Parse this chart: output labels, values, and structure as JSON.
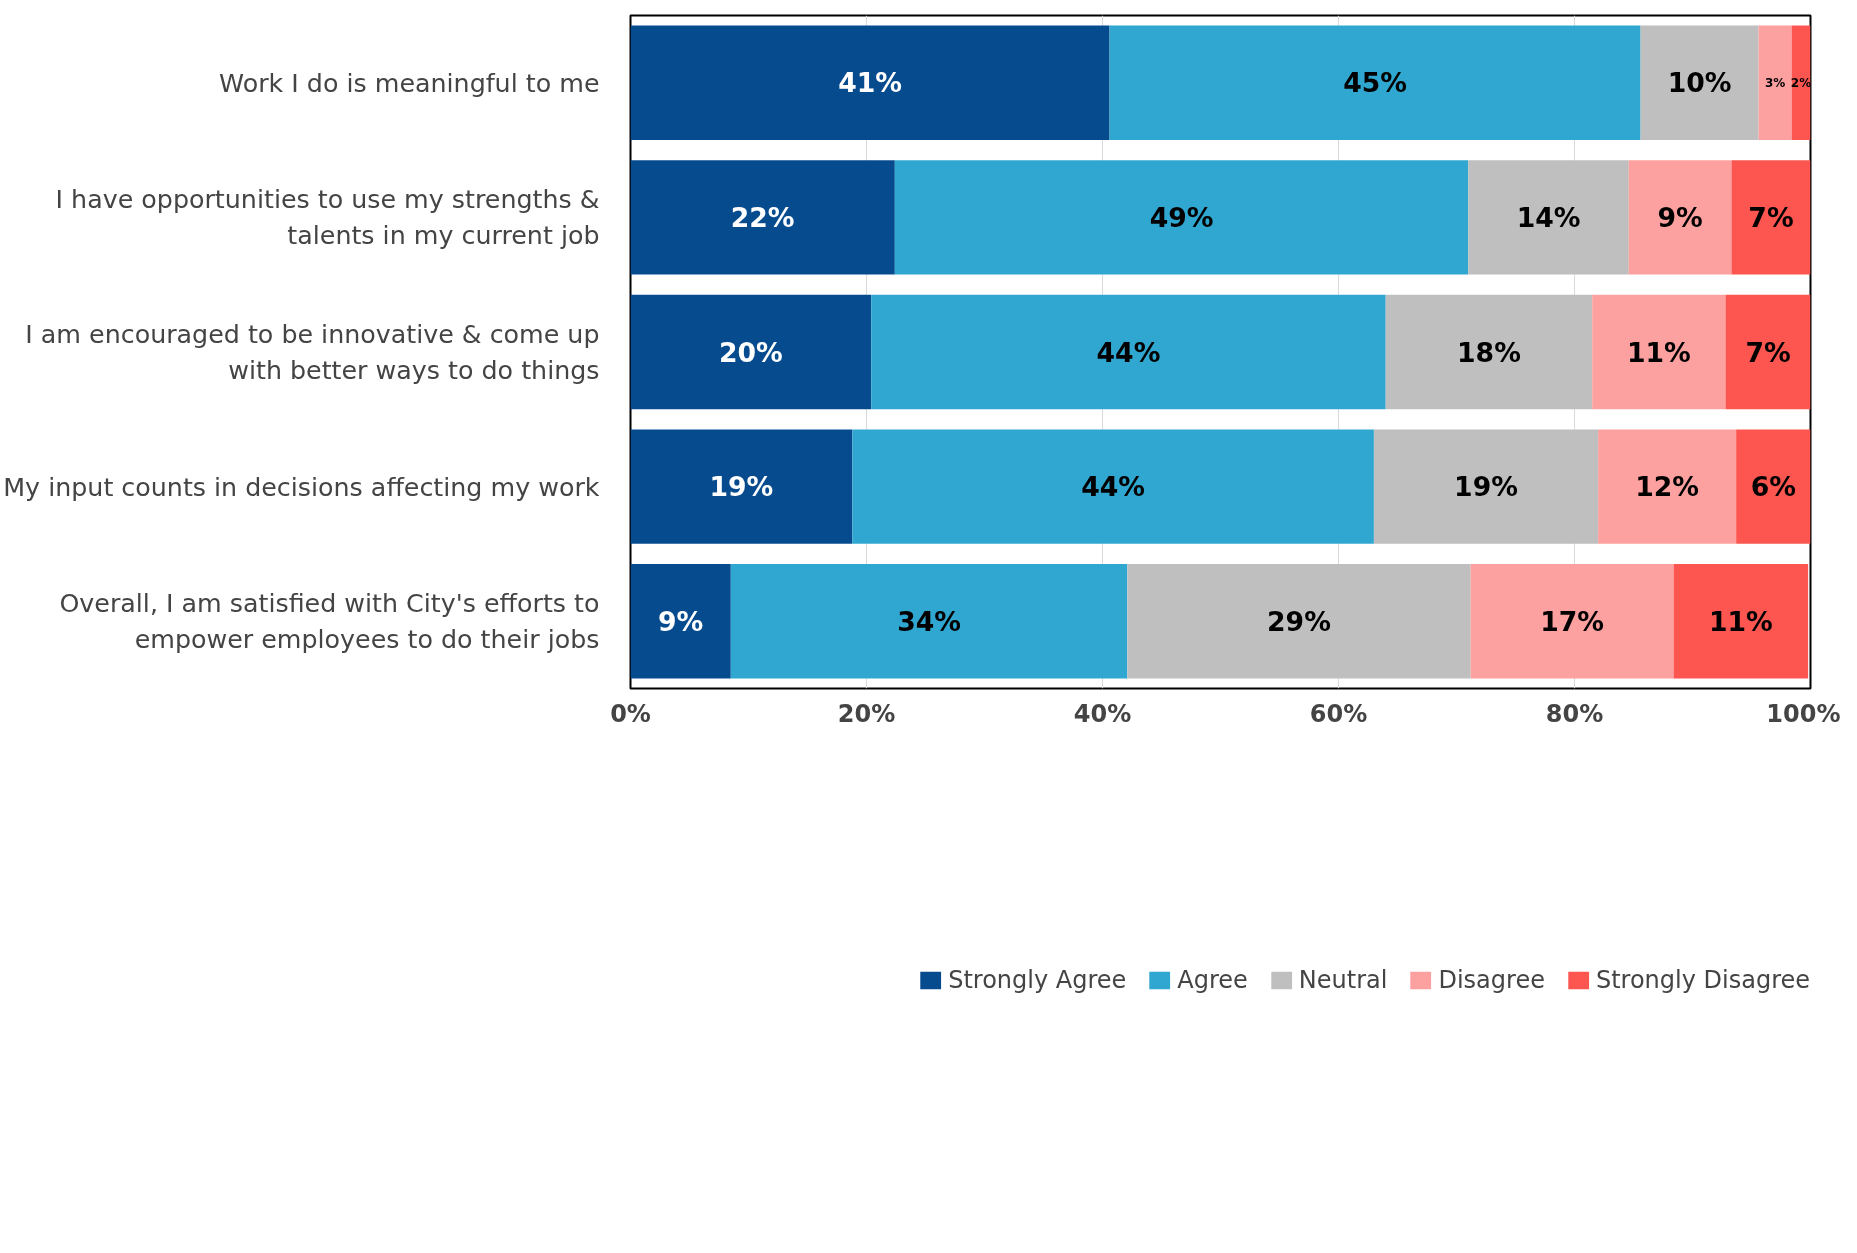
{
  "chart_data": {
    "type": "bar",
    "orientation": "horizontal",
    "stacked": true,
    "categories": [
      "Work I do is meaningful to me",
      "I have opportunities to use my strengths & talents in my current job",
      "I am encouraged to be innovative & come up with better ways to do things",
      "My input counts in decisions affecting my work",
      "Overall, I am satisfied with City's efforts to empower employees to do their jobs"
    ],
    "series": [
      {
        "name": "Strongly Agree",
        "color": "#074b8f",
        "values": [
          40.6,
          22.4,
          20.4,
          18.8,
          8.5
        ],
        "value_labels": [
          "41%",
          "22%",
          "20%",
          "19%",
          "9%"
        ]
      },
      {
        "name": "Agree",
        "color": "#30a7d1",
        "values": [
          45.0,
          48.6,
          43.6,
          44.2,
          33.6
        ],
        "value_labels": [
          "45%",
          "49%",
          "44%",
          "44%",
          "34%"
        ]
      },
      {
        "name": "Neutral",
        "color": "#bfbfbf",
        "values": [
          10.0,
          13.6,
          17.5,
          19.0,
          29.1
        ],
        "value_labels": [
          "10%",
          "14%",
          "18%",
          "19%",
          "29%"
        ]
      },
      {
        "name": "Disagree",
        "color": "#fda0a0",
        "values": [
          2.8,
          8.7,
          11.3,
          11.7,
          17.2
        ],
        "value_labels": [
          "3%",
          "9%",
          "11%",
          "12%",
          "17%"
        ]
      },
      {
        "name": "Strongly Disagree",
        "color": "#fd5650",
        "values": [
          1.6,
          6.7,
          7.2,
          6.3,
          11.4
        ],
        "value_labels": [
          "2%",
          "7%",
          "7%",
          "6%",
          "11%"
        ]
      }
    ],
    "xlim": [
      0,
      100
    ],
    "xticks": [
      {
        "value": 0,
        "label": "0%"
      },
      {
        "value": 20,
        "label": "20%"
      },
      {
        "value": 40,
        "label": "40%"
      },
      {
        "value": 60,
        "label": "60%"
      },
      {
        "value": 80,
        "label": "80%"
      },
      {
        "value": 100,
        "label": "100%"
      }
    ],
    "grid": "x",
    "legend": "bottom"
  }
}
